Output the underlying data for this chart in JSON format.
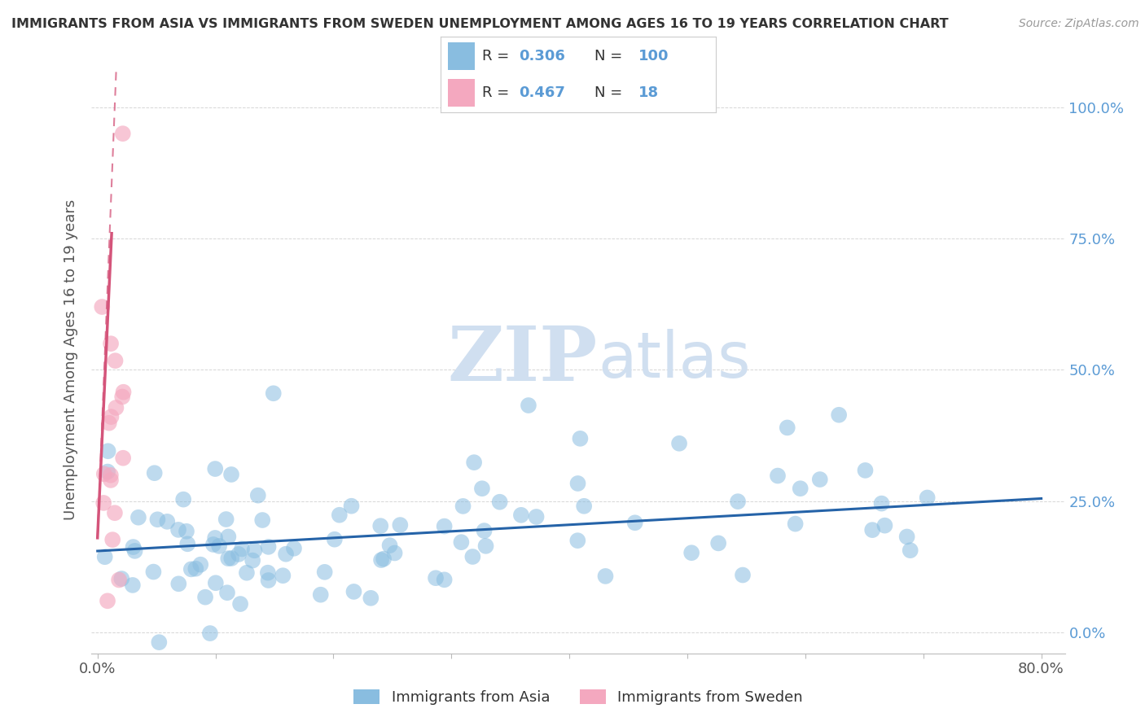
{
  "title": "IMMIGRANTS FROM ASIA VS IMMIGRANTS FROM SWEDEN UNEMPLOYMENT AMONG AGES 16 TO 19 YEARS CORRELATION CHART",
  "source": "Source: ZipAtlas.com",
  "ylabel": "Unemployment Among Ages 16 to 19 years",
  "xlim": [
    -0.005,
    0.82
  ],
  "ylim": [
    -0.04,
    1.08
  ],
  "color_asia": "#89bde0",
  "color_sweden": "#f4a8bf",
  "color_trend_asia": "#2563a8",
  "color_trend_sweden": "#d4547a",
  "watermark_color": "#d0dff0",
  "background": "#ffffff",
  "grid_color": "#cccccc",
  "right_tick_color": "#5B9BD5",
  "title_color": "#333333",
  "source_color": "#999999",
  "ylabel_color": "#555555",
  "xtick_color": "#555555",
  "legend_r1": "0.306",
  "legend_n1": "100",
  "legend_r2": "0.467",
  "legend_n2": "18",
  "trend_asia_x0": 0.0,
  "trend_asia_x1": 0.8,
  "trend_asia_y0": 0.155,
  "trend_asia_y1": 0.255,
  "trend_sweden_solid_x0": 0.0,
  "trend_sweden_solid_x1": 0.012,
  "trend_sweden_solid_y0": 0.18,
  "trend_sweden_solid_y1": 0.76,
  "trend_sweden_dash_x0": 0.0,
  "trend_sweden_dash_x1": 0.016,
  "trend_sweden_dash_y0": 0.18,
  "trend_sweden_dash_y1": 1.08
}
